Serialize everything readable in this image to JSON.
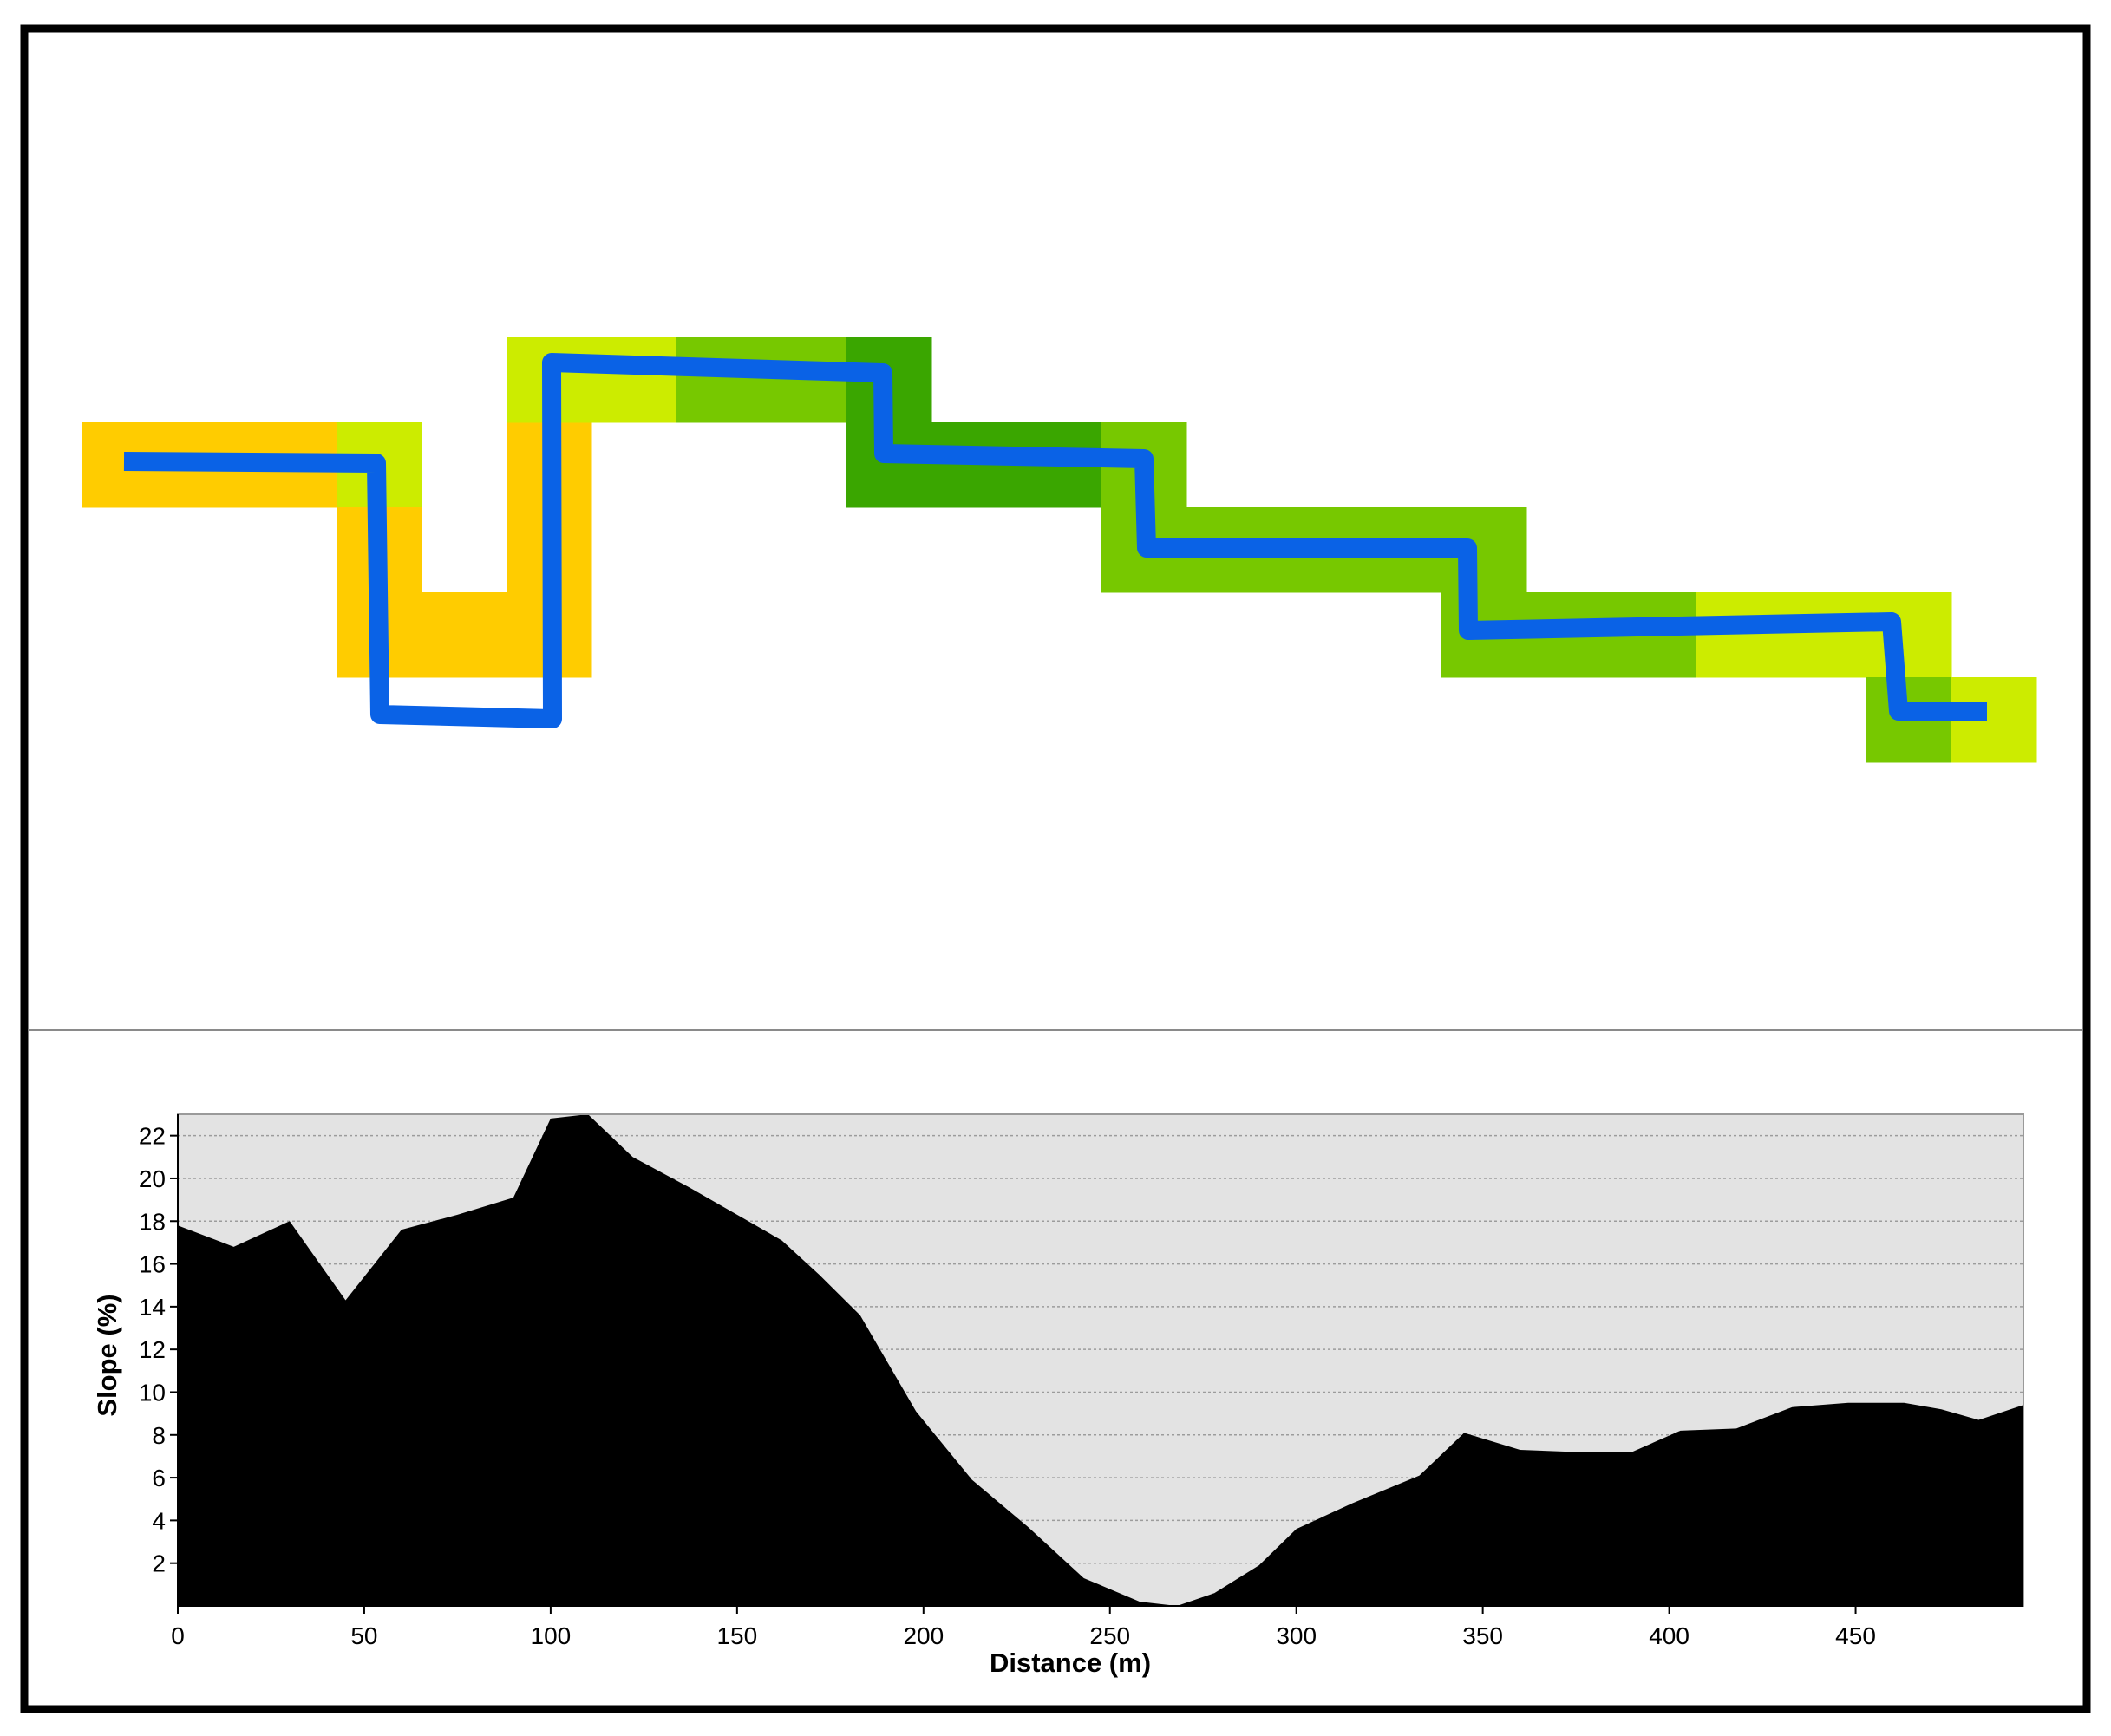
{
  "colors": {
    "route": "#0a62e6",
    "slope_fill": "#000000",
    "plot_bg": "#e3e3e3",
    "class_orange": "#ffcc00",
    "class_yellow_green": "#ccec00",
    "class_mid_green": "#77c800",
    "class_dark_green": "#3aa600"
  },
  "route_cells": [
    {
      "col": 0,
      "row": 1,
      "class": "class_orange"
    },
    {
      "col": 1,
      "row": 1,
      "class": "class_orange"
    },
    {
      "col": 2,
      "row": 1,
      "class": "class_orange"
    },
    {
      "col": 3,
      "row": 1,
      "class": "class_yellow_green"
    },
    {
      "col": 3,
      "row": 2,
      "class": "class_orange"
    },
    {
      "col": 3,
      "row": 3,
      "class": "class_orange"
    },
    {
      "col": 4,
      "row": 3,
      "class": "class_orange"
    },
    {
      "col": 5,
      "row": 3,
      "class": "class_orange"
    },
    {
      "col": 5,
      "row": 2,
      "class": "class_orange"
    },
    {
      "col": 5,
      "row": 1,
      "class": "class_orange"
    },
    {
      "col": 5,
      "row": 0,
      "class": "class_yellow_green"
    },
    {
      "col": 6,
      "row": 0,
      "class": "class_yellow_green"
    },
    {
      "col": 7,
      "row": 0,
      "class": "class_mid_green"
    },
    {
      "col": 8,
      "row": 0,
      "class": "class_mid_green"
    },
    {
      "col": 9,
      "row": 0,
      "class": "class_dark_green"
    },
    {
      "col": 9,
      "row": 1,
      "class": "class_dark_green"
    },
    {
      "col": 10,
      "row": 1,
      "class": "class_dark_green"
    },
    {
      "col": 11,
      "row": 1,
      "class": "class_dark_green"
    },
    {
      "col": 12,
      "row": 1,
      "class": "class_mid_green"
    },
    {
      "col": 12,
      "row": 2,
      "class": "class_mid_green"
    },
    {
      "col": 13,
      "row": 2,
      "class": "class_mid_green"
    },
    {
      "col": 14,
      "row": 2,
      "class": "class_mid_green"
    },
    {
      "col": 15,
      "row": 2,
      "class": "class_mid_green"
    },
    {
      "col": 16,
      "row": 2,
      "class": "class_mid_green"
    },
    {
      "col": 16,
      "row": 3,
      "class": "class_mid_green"
    },
    {
      "col": 17,
      "row": 3,
      "class": "class_mid_green"
    },
    {
      "col": 18,
      "row": 3,
      "class": "class_mid_green"
    },
    {
      "col": 19,
      "row": 3,
      "class": "class_yellow_green"
    },
    {
      "col": 20,
      "row": 3,
      "class": "class_yellow_green"
    },
    {
      "col": 21,
      "row": 3,
      "class": "class_yellow_green"
    },
    {
      "col": 21,
      "row": 4,
      "class": "class_mid_green"
    },
    {
      "col": 22,
      "row": 4,
      "class": "class_yellow_green"
    }
  ],
  "chart_data": {
    "type": "area",
    "xlabel": "Distance (m)",
    "ylabel": "Slope (%)",
    "xlim": [
      0,
      495
    ],
    "ylim": [
      0,
      23
    ],
    "x_ticks": [
      0,
      50,
      100,
      150,
      200,
      250,
      300,
      350,
      400,
      450
    ],
    "y_ticks": [
      2,
      4,
      6,
      8,
      10,
      12,
      14,
      16,
      18,
      20,
      22
    ],
    "grid": true,
    "x": [
      0,
      15,
      30,
      45,
      60,
      75,
      90,
      100,
      110,
      122,
      137,
      152,
      162,
      172,
      183,
      198,
      213,
      228,
      243,
      258,
      268,
      278,
      290,
      300,
      315,
      333,
      345,
      360,
      375,
      390,
      403,
      418,
      433,
      448,
      463,
      473,
      483,
      495
    ],
    "y": [
      17.8,
      16.8,
      18.0,
      14.3,
      17.6,
      18.3,
      19.1,
      22.8,
      23.0,
      21.0,
      19.6,
      18.1,
      17.1,
      15.5,
      13.6,
      9.1,
      5.9,
      3.7,
      1.3,
      0.2,
      0.0,
      0.6,
      1.9,
      3.6,
      4.8,
      6.1,
      8.1,
      7.3,
      7.2,
      7.2,
      8.2,
      8.3,
      9.3,
      9.5,
      9.5,
      9.2,
      8.7,
      9.4
    ]
  }
}
